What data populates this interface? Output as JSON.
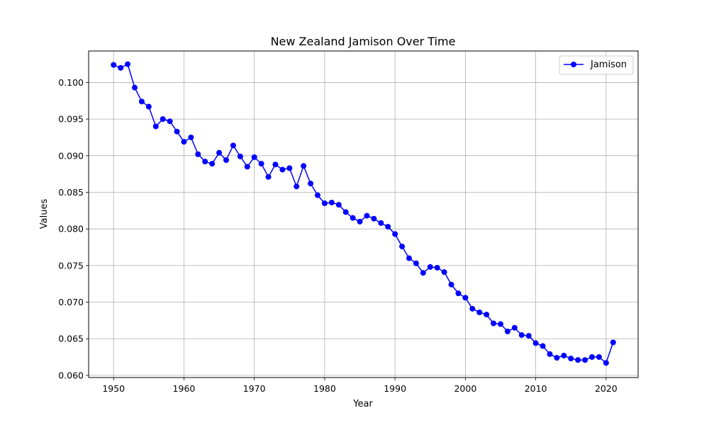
{
  "chart_data": {
    "type": "line",
    "title": "New Zealand Jamison Over Time",
    "xlabel": "Year",
    "ylabel": "Values",
    "xlim": [
      1946.45,
      2024.55
    ],
    "ylim": [
      0.0597,
      0.1043
    ],
    "xticks": [
      1950,
      1960,
      1970,
      1980,
      1990,
      2000,
      2010,
      2020
    ],
    "yticks": [
      0.06,
      0.065,
      0.07,
      0.075,
      0.08,
      0.085,
      0.09,
      0.095,
      0.1
    ],
    "ytick_labels": [
      "0.060",
      "0.065",
      "0.070",
      "0.075",
      "0.080",
      "0.085",
      "0.090",
      "0.095",
      "0.100"
    ],
    "grid": true,
    "legend_position": "top-right",
    "series": [
      {
        "name": "Jamison",
        "color": "#0000ff",
        "marker": "circle",
        "x": [
          1950,
          1951,
          1952,
          1953,
          1954,
          1955,
          1956,
          1957,
          1958,
          1959,
          1960,
          1961,
          1962,
          1963,
          1964,
          1965,
          1966,
          1967,
          1968,
          1969,
          1970,
          1971,
          1972,
          1973,
          1974,
          1975,
          1976,
          1977,
          1978,
          1979,
          1980,
          1981,
          1982,
          1983,
          1984,
          1985,
          1986,
          1987,
          1988,
          1989,
          1990,
          1991,
          1992,
          1993,
          1994,
          1995,
          1996,
          1997,
          1998,
          1999,
          2000,
          2001,
          2002,
          2003,
          2004,
          2005,
          2006,
          2007,
          2008,
          2009,
          2010,
          2011,
          2012,
          2013,
          2014,
          2015,
          2016,
          2017,
          2018,
          2019,
          2020,
          2021
        ],
        "y": [
          0.1024,
          0.102,
          0.1025,
          0.0993,
          0.0974,
          0.0967,
          0.094,
          0.095,
          0.0947,
          0.0933,
          0.0919,
          0.0925,
          0.0902,
          0.0892,
          0.0889,
          0.0904,
          0.0894,
          0.0914,
          0.0899,
          0.0885,
          0.0898,
          0.0889,
          0.0871,
          0.0888,
          0.0881,
          0.0883,
          0.0858,
          0.0886,
          0.0862,
          0.0846,
          0.0835,
          0.0836,
          0.0833,
          0.0823,
          0.0815,
          0.081,
          0.0818,
          0.0814,
          0.0808,
          0.0803,
          0.0793,
          0.0776,
          0.076,
          0.0753,
          0.074,
          0.0748,
          0.0747,
          0.0741,
          0.0724,
          0.0712,
          0.0706,
          0.0691,
          0.0686,
          0.0683,
          0.0671,
          0.067,
          0.066,
          0.0665,
          0.0655,
          0.0654,
          0.0644,
          0.064,
          0.0629,
          0.0624,
          0.0627,
          0.0623,
          0.0621,
          0.0621,
          0.0625,
          0.0625,
          0.0617,
          0.0645
        ]
      }
    ]
  }
}
